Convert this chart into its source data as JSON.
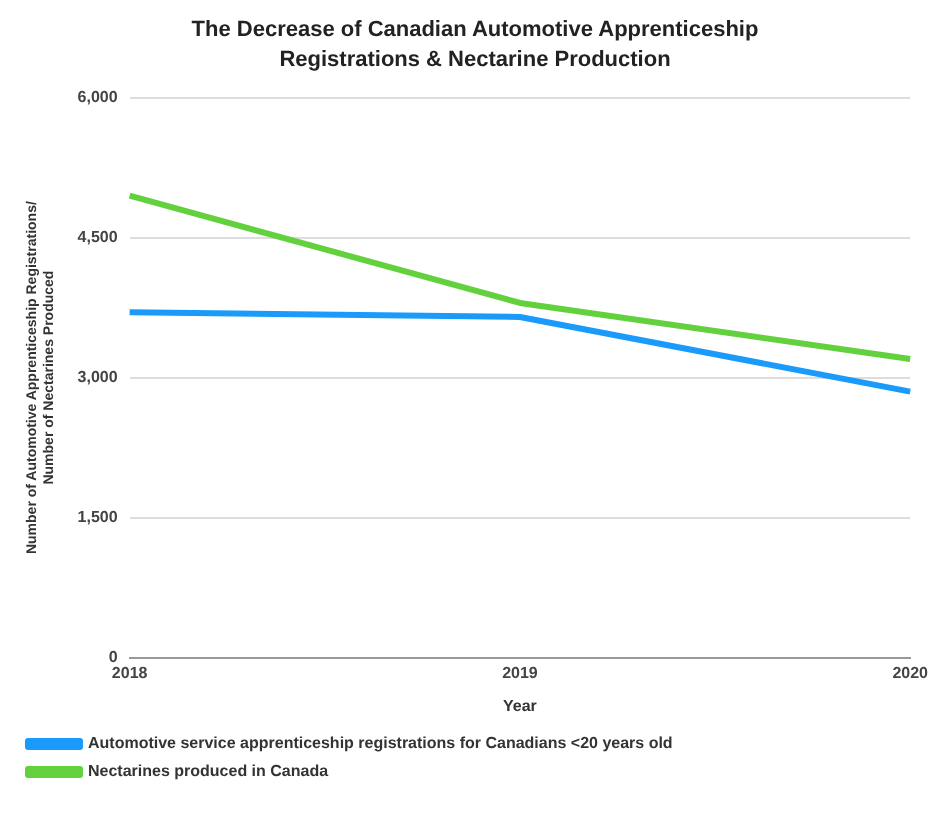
{
  "chart_data": {
    "type": "line",
    "title": "The Decrease of Canadian Automotive Apprenticeship Registrations & Nectarine Production",
    "xlabel": "Year",
    "ylabel": "Number of Automotive Apprenticeship Registrations/ Number of Nectarines Produced",
    "categories": [
      "2018",
      "2019",
      "2020"
    ],
    "series": [
      {
        "name": "Automotive service apprenticeship registrations for Canadians <20 years old",
        "color": "#1a9bfc",
        "values": [
          3700,
          3650,
          2850
        ]
      },
      {
        "name": "Nectarines produced in Canada",
        "color": "#63d13e",
        "values": [
          4950,
          3800,
          3200
        ]
      }
    ],
    "ylim": [
      0,
      6000
    ],
    "yticks": [
      {
        "value": 0,
        "label": "0"
      },
      {
        "value": 1500,
        "label": "1,500"
      },
      {
        "value": 3000,
        "label": "3,000"
      },
      {
        "value": 4500,
        "label": "4,500"
      },
      {
        "value": 6000,
        "label": "6,000"
      }
    ],
    "grid": "y",
    "legend": "bottom",
    "marker": "none",
    "line_style": "solid"
  }
}
